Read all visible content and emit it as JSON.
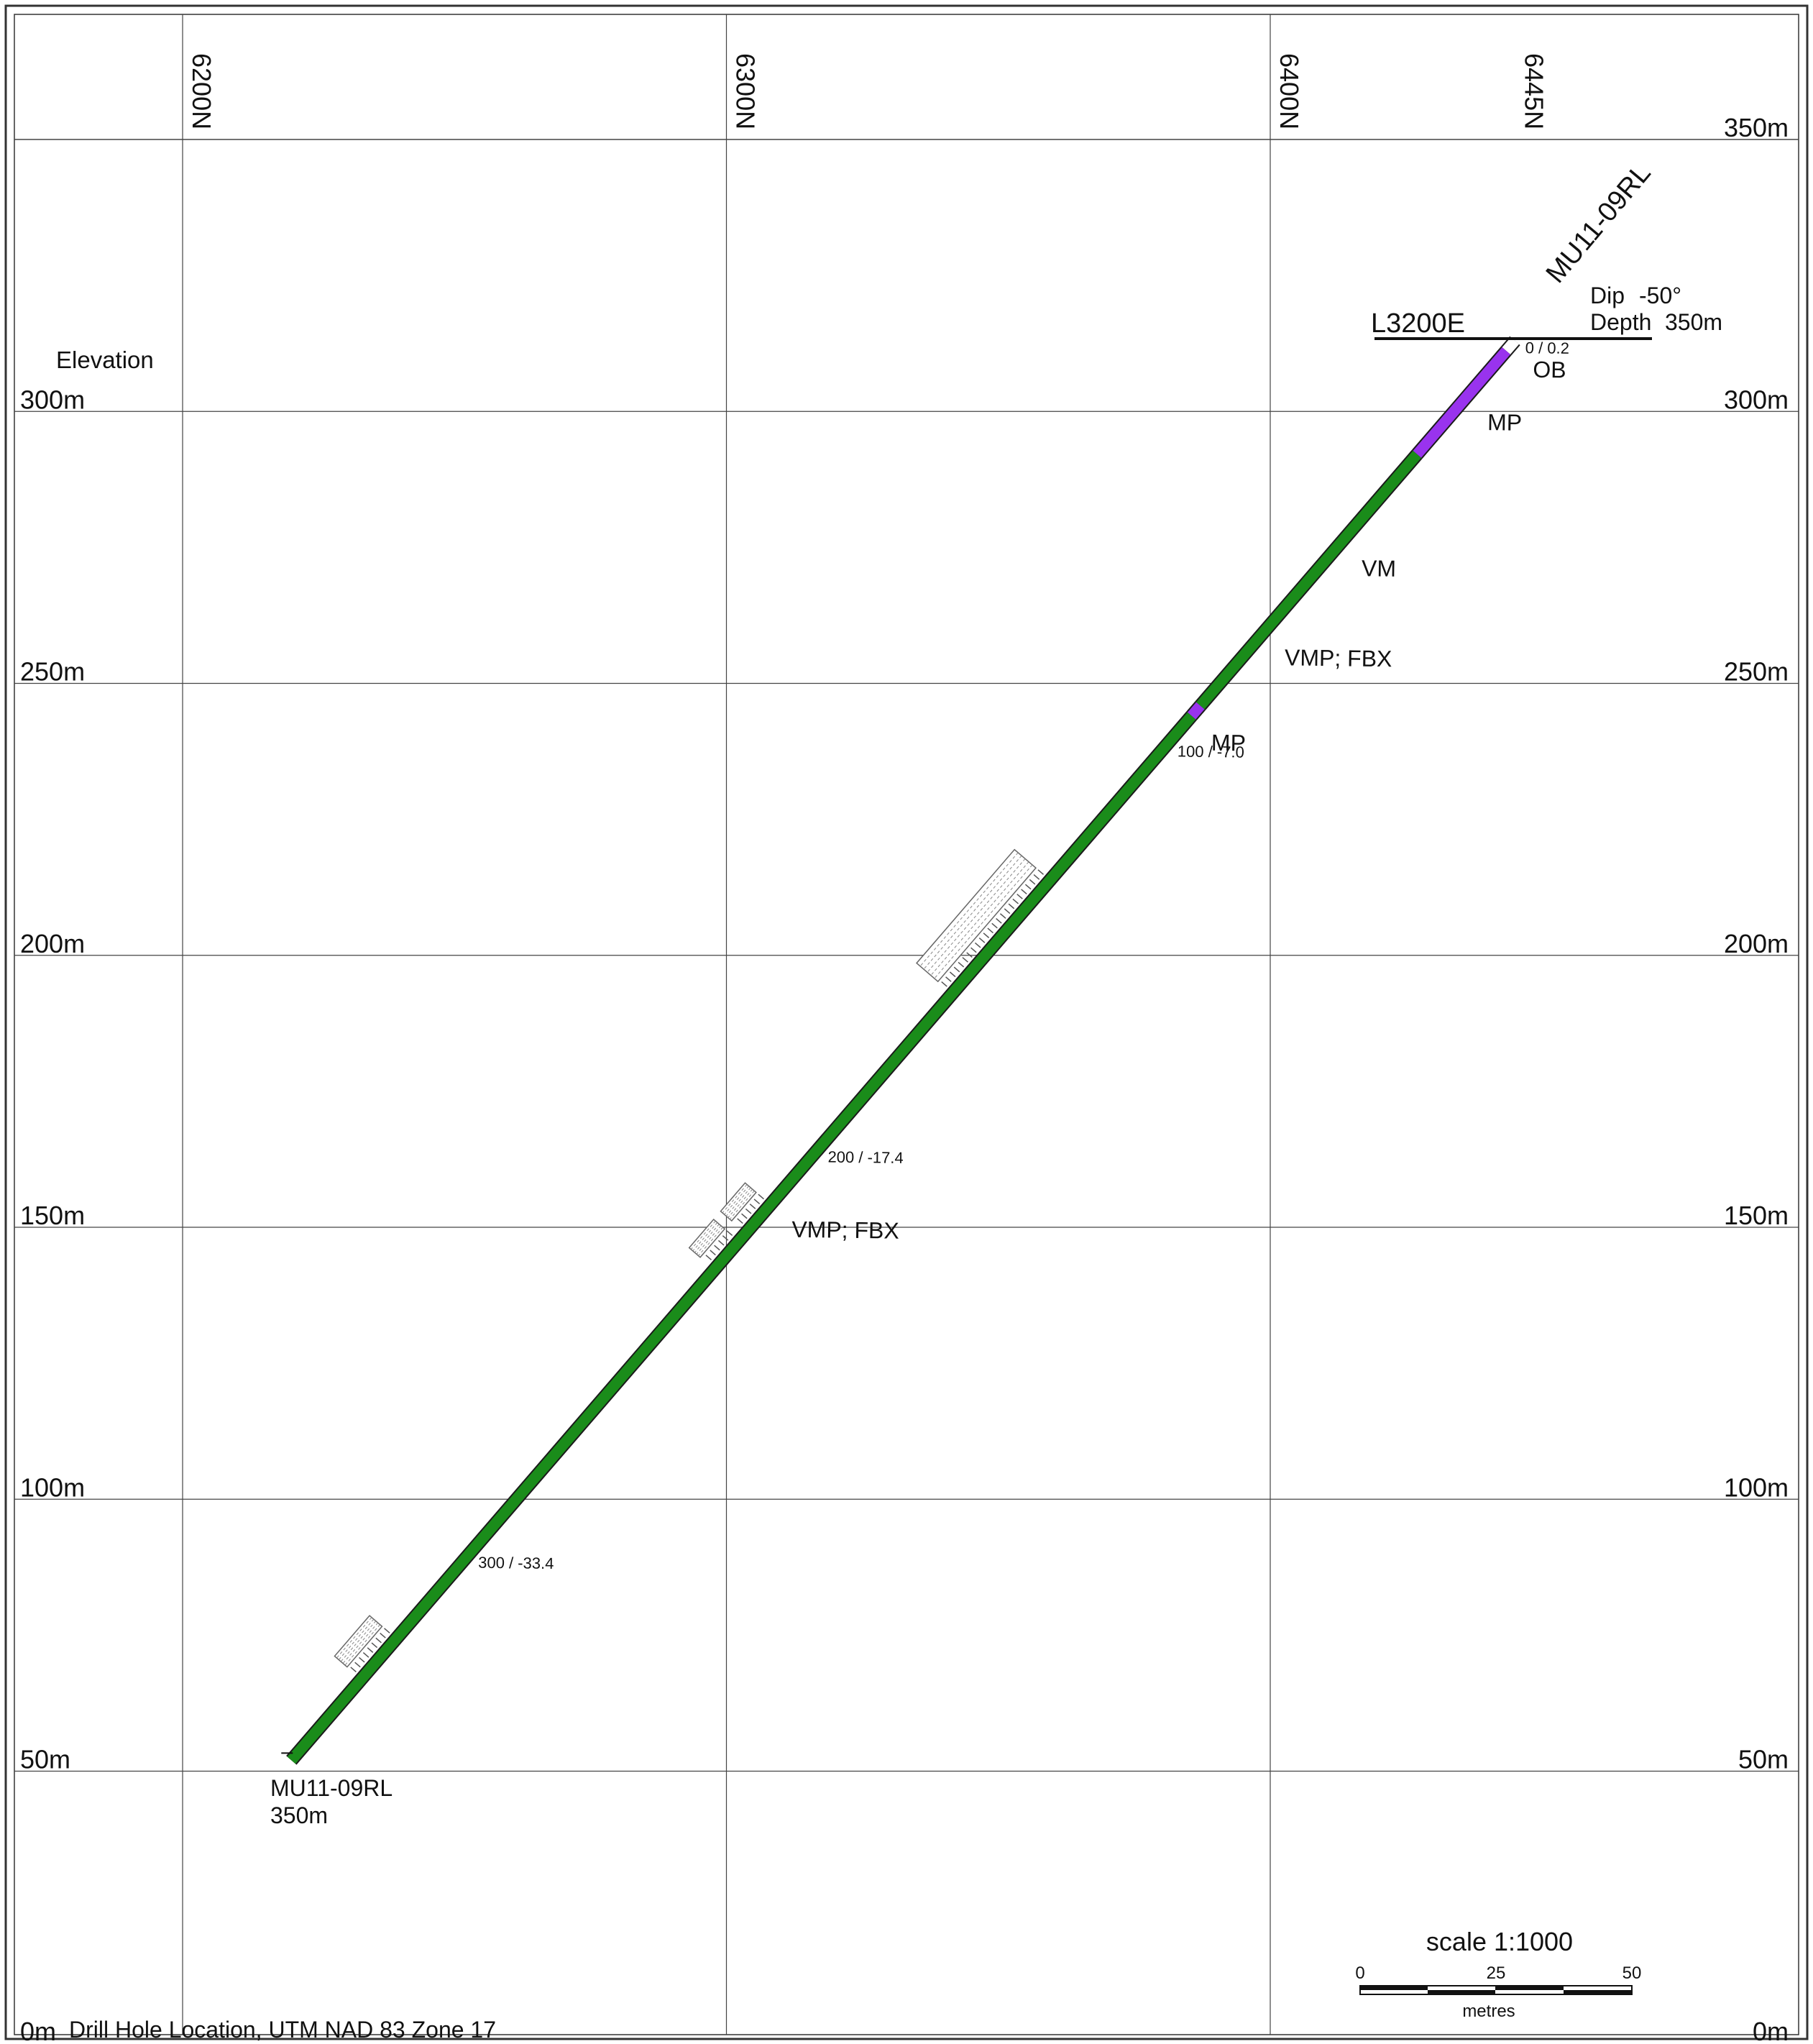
{
  "section": {
    "northing_gridlines": [
      {
        "label": "6200N",
        "northing": 6200,
        "gridline": true
      },
      {
        "label": "6300N",
        "northing": 6300,
        "gridline": true
      },
      {
        "label": "6400N",
        "northing": 6400,
        "gridline": true
      },
      {
        "label": "6445N",
        "northing": 6445,
        "gridline": false
      }
    ],
    "elevation_gridlines": [
      {
        "label": "350m",
        "elevation": 350,
        "left_label": false
      },
      {
        "label": "300m",
        "elevation": 300,
        "left_label": true
      },
      {
        "label": "250m",
        "elevation": 250,
        "left_label": true
      },
      {
        "label": "200m",
        "elevation": 200,
        "left_label": true
      },
      {
        "label": "150m",
        "elevation": 150,
        "left_label": true
      },
      {
        "label": "100m",
        "elevation": 100,
        "left_label": true
      },
      {
        "label": "50m",
        "elevation": 50,
        "left_label": true
      },
      {
        "label": "0m",
        "elevation": 0,
        "left_label": true
      }
    ],
    "elevation_axis_label": "Elevation",
    "section_line_label": "L3200E",
    "footer_note": "Drill Hole  Location,  UTM  NAD 83  Zone 17"
  },
  "hole": {
    "id": "MU11-09RL",
    "dip_label": "Dip",
    "dip_value": "-50°",
    "depth_label": "Depth",
    "depth_value": "350m",
    "end_label_id": "MU11-09RL",
    "end_label_depth": "350m",
    "collar": {
      "northing": 6445,
      "elevation": 313
    },
    "end": {
      "northing": 6220,
      "elevation": 52
    },
    "intervals": [
      {
        "from": 0,
        "to": 2.5,
        "unit": "OB",
        "color": "#ffffff"
      },
      {
        "from": 2.5,
        "to": 28,
        "unit": "MP",
        "color": "#9933ee"
      },
      {
        "from": 28,
        "to": 90,
        "unit": "VM",
        "color": "#1a8c1a"
      },
      {
        "from": 90,
        "to": 92.5,
        "unit": "MP",
        "color": "#9933ee"
      },
      {
        "from": 92.5,
        "to": 350,
        "unit": "VMP; FBX",
        "color": "#1a8c1a"
      }
    ],
    "unit_labels": [
      {
        "text": "OB",
        "depth": 3
      },
      {
        "text": "MP",
        "depth": 16
      },
      {
        "text": "VM",
        "depth": 52
      },
      {
        "text": "VMP; FBX",
        "depth": 74
      },
      {
        "text": "MP",
        "depth": 95
      },
      {
        "text": "VMP; FBX",
        "depth": 215
      }
    ],
    "surveys": [
      {
        "text": "0 / 0.2",
        "depth": 0.5
      },
      {
        "text": "100 / -7.0",
        "depth": 100
      },
      {
        "text": "200 / -17.4",
        "depth": 200
      },
      {
        "text": "300 / -33.4",
        "depth": 300
      }
    ],
    "sample_zones": [
      {
        "from": 133,
        "to": 161
      },
      {
        "from": 213,
        "to": 220
      },
      {
        "from": 222,
        "to": 229
      },
      {
        "from": 320,
        "to": 330
      }
    ]
  },
  "scale_bar": {
    "title": "scale 1:1000",
    "ticks": [
      "0",
      "25",
      "50"
    ],
    "unit": "metres"
  },
  "colors": {
    "border": "#333333",
    "grid": "#444444",
    "vm_green": "#1a8c1a",
    "mp_purple": "#9933ee",
    "sample_hatch": "#666666"
  }
}
